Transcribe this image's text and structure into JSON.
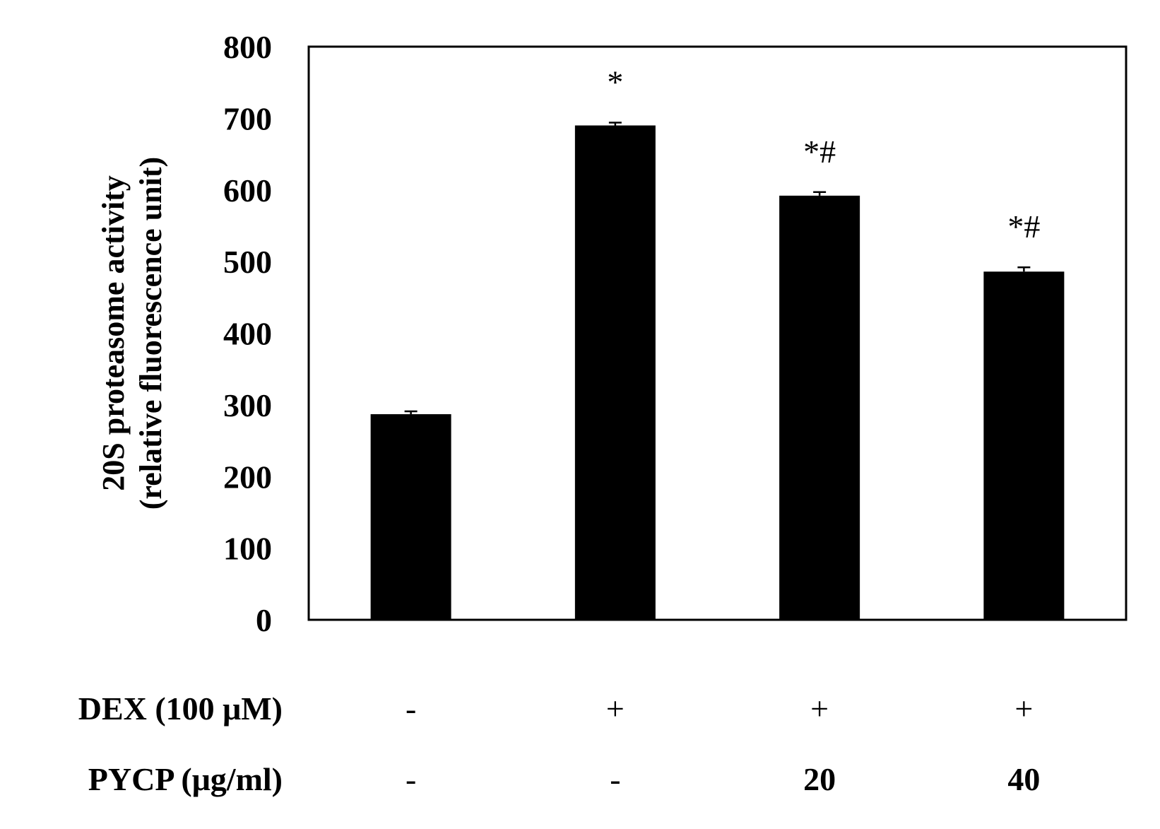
{
  "chart_data": {
    "type": "bar",
    "title": "",
    "xlabel": "",
    "ylabel": [
      "20S proteasome activity",
      "(relative fluorescence unit)"
    ],
    "ylim": [
      0,
      800
    ],
    "yticks": [
      0,
      100,
      200,
      300,
      400,
      500,
      600,
      700,
      800
    ],
    "grid": false,
    "bar_color": "#000000",
    "bars": [
      {
        "value": 287,
        "error": 4,
        "annotation": ""
      },
      {
        "value": 690,
        "error": 4,
        "annotation": "*"
      },
      {
        "value": 592,
        "error": 5,
        "annotation": "*#"
      },
      {
        "value": 486,
        "error": 6,
        "annotation": "*#"
      }
    ],
    "treatment_rows": [
      {
        "label": "DEX (100 μM)",
        "values": [
          "-",
          "+",
          "+",
          "+"
        ]
      },
      {
        "label": "PYCP (μg/ml)",
        "values": [
          "-",
          "-",
          "20",
          "40"
        ]
      }
    ]
  }
}
